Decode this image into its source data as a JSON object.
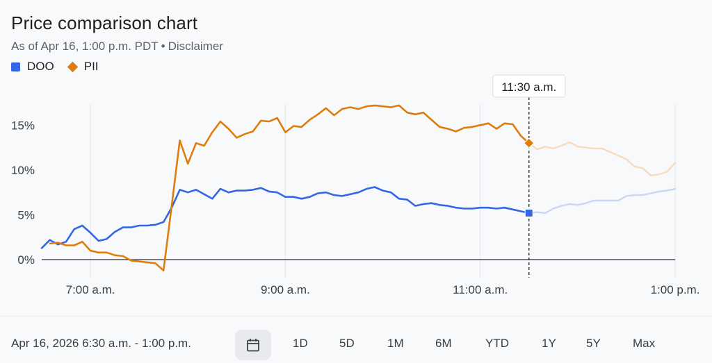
{
  "title": "Price comparison chart",
  "subtitle": {
    "as_of": "As of Apr 16, 1:00 p.m. PDT",
    "separator": "•",
    "disclaimer": "Disclaimer"
  },
  "legend": [
    {
      "label": "DOO",
      "color": "#3367e5",
      "marker": "square"
    },
    {
      "label": "PII",
      "color": "#e07c0b",
      "marker": "diamond"
    }
  ],
  "tooltip_label": "11:30 a.m.",
  "footer": {
    "date_range": "Apr 16, 2026 6:30 a.m. - 1:00 p.m.",
    "calendar_icon": "calendar-icon",
    "periods": [
      "1D",
      "5D",
      "1M",
      "6M",
      "YTD",
      "1Y",
      "5Y",
      "Max"
    ]
  },
  "chart_data": {
    "type": "line",
    "title": "Price comparison chart",
    "x_unit": "minutes since 6:30 a.m.",
    "xlim": [
      0,
      390
    ],
    "ylim": [
      -2,
      17.5
    ],
    "y_ticks": [
      {
        "value": 0,
        "label": "0%"
      },
      {
        "value": 5,
        "label": "5%"
      },
      {
        "value": 10,
        "label": "10%"
      },
      {
        "value": 15,
        "label": "15%"
      }
    ],
    "x_ticks": [
      {
        "value": 30,
        "label": "7:00 a.m."
      },
      {
        "value": 150,
        "label": "9:00 a.m."
      },
      {
        "value": 270,
        "label": "11:00 a.m."
      },
      {
        "value": 390,
        "label": "1:00 p.m."
      }
    ],
    "hover_x": 300,
    "series": [
      {
        "name": "DOO",
        "color": "#3367e5",
        "faded_color": "#c9d6f7",
        "points": [
          [
            0,
            1.3
          ],
          [
            5,
            2.2
          ],
          [
            10,
            1.7
          ],
          [
            15,
            2.0
          ],
          [
            20,
            3.4
          ],
          [
            25,
            3.8
          ],
          [
            30,
            3.0
          ],
          [
            35,
            2.1
          ],
          [
            40,
            2.3
          ],
          [
            45,
            3.1
          ],
          [
            50,
            3.6
          ],
          [
            55,
            3.6
          ],
          [
            60,
            3.8
          ],
          [
            65,
            3.8
          ],
          [
            70,
            3.9
          ],
          [
            75,
            4.2
          ],
          [
            80,
            5.8
          ],
          [
            85,
            7.8
          ],
          [
            90,
            7.5
          ],
          [
            95,
            7.8
          ],
          [
            100,
            7.3
          ],
          [
            105,
            6.8
          ],
          [
            110,
            7.9
          ],
          [
            115,
            7.5
          ],
          [
            120,
            7.7
          ],
          [
            125,
            7.7
          ],
          [
            130,
            7.8
          ],
          [
            135,
            8.0
          ],
          [
            140,
            7.6
          ],
          [
            145,
            7.5
          ],
          [
            150,
            7.0
          ],
          [
            155,
            7.0
          ],
          [
            160,
            6.8
          ],
          [
            165,
            7.0
          ],
          [
            170,
            7.4
          ],
          [
            175,
            7.5
          ],
          [
            180,
            7.2
          ],
          [
            185,
            7.1
          ],
          [
            190,
            7.3
          ],
          [
            195,
            7.5
          ],
          [
            200,
            7.9
          ],
          [
            205,
            8.1
          ],
          [
            210,
            7.7
          ],
          [
            215,
            7.5
          ],
          [
            220,
            6.8
          ],
          [
            225,
            6.7
          ],
          [
            230,
            6.0
          ],
          [
            235,
            6.2
          ],
          [
            240,
            6.3
          ],
          [
            245,
            6.1
          ],
          [
            250,
            6.0
          ],
          [
            255,
            5.8
          ],
          [
            260,
            5.7
          ],
          [
            265,
            5.7
          ],
          [
            270,
            5.8
          ],
          [
            275,
            5.8
          ],
          [
            280,
            5.7
          ],
          [
            285,
            5.8
          ],
          [
            290,
            5.6
          ],
          [
            295,
            5.4
          ],
          [
            300,
            5.2
          ],
          [
            305,
            5.3
          ],
          [
            310,
            5.2
          ],
          [
            315,
            5.7
          ],
          [
            320,
            6.0
          ],
          [
            325,
            6.2
          ],
          [
            330,
            6.1
          ],
          [
            335,
            6.3
          ],
          [
            340,
            6.6
          ],
          [
            345,
            6.6
          ],
          [
            350,
            6.6
          ],
          [
            355,
            6.6
          ],
          [
            360,
            7.1
          ],
          [
            365,
            7.2
          ],
          [
            370,
            7.2
          ],
          [
            375,
            7.4
          ],
          [
            380,
            7.6
          ],
          [
            385,
            7.7
          ],
          [
            390,
            7.9
          ]
        ]
      },
      {
        "name": "PII",
        "color": "#e07c0b",
        "faded_color": "#f6dcbe",
        "points": [
          [
            5,
            1.8
          ],
          [
            10,
            1.9
          ],
          [
            15,
            1.6
          ],
          [
            20,
            1.6
          ],
          [
            25,
            2.0
          ],
          [
            30,
            1.0
          ],
          [
            35,
            0.8
          ],
          [
            40,
            0.8
          ],
          [
            45,
            0.5
          ],
          [
            50,
            0.4
          ],
          [
            55,
            -0.1
          ],
          [
            60,
            -0.2
          ],
          [
            65,
            -0.3
          ],
          [
            70,
            -0.4
          ],
          [
            75,
            -1.2
          ],
          [
            80,
            6.0
          ],
          [
            85,
            13.3
          ],
          [
            90,
            10.7
          ],
          [
            95,
            13.0
          ],
          [
            100,
            12.7
          ],
          [
            105,
            14.2
          ],
          [
            110,
            15.4
          ],
          [
            115,
            14.6
          ],
          [
            120,
            13.6
          ],
          [
            125,
            14.0
          ],
          [
            130,
            14.3
          ],
          [
            135,
            15.5
          ],
          [
            140,
            15.4
          ],
          [
            145,
            15.8
          ],
          [
            150,
            14.2
          ],
          [
            155,
            14.9
          ],
          [
            160,
            14.8
          ],
          [
            165,
            15.6
          ],
          [
            170,
            16.2
          ],
          [
            175,
            16.9
          ],
          [
            180,
            16.1
          ],
          [
            185,
            16.8
          ],
          [
            190,
            17.0
          ],
          [
            195,
            16.8
          ],
          [
            200,
            17.1
          ],
          [
            205,
            17.2
          ],
          [
            210,
            17.1
          ],
          [
            215,
            17.0
          ],
          [
            220,
            17.2
          ],
          [
            225,
            16.4
          ],
          [
            230,
            16.2
          ],
          [
            235,
            16.4
          ],
          [
            240,
            15.6
          ],
          [
            245,
            14.8
          ],
          [
            250,
            14.6
          ],
          [
            255,
            14.3
          ],
          [
            260,
            14.7
          ],
          [
            265,
            14.8
          ],
          [
            270,
            15.0
          ],
          [
            275,
            15.2
          ],
          [
            280,
            14.6
          ],
          [
            285,
            15.2
          ],
          [
            290,
            15.1
          ],
          [
            295,
            13.8
          ],
          [
            300,
            13.0
          ],
          [
            305,
            12.3
          ],
          [
            310,
            12.6
          ],
          [
            315,
            12.4
          ],
          [
            320,
            12.7
          ],
          [
            325,
            13.1
          ],
          [
            330,
            12.6
          ],
          [
            335,
            12.5
          ],
          [
            340,
            12.4
          ],
          [
            345,
            12.4
          ],
          [
            350,
            12.0
          ],
          [
            355,
            11.6
          ],
          [
            360,
            11.2
          ],
          [
            365,
            10.4
          ],
          [
            370,
            10.2
          ],
          [
            375,
            9.4
          ],
          [
            380,
            9.5
          ],
          [
            385,
            9.8
          ],
          [
            390,
            10.8
          ]
        ]
      }
    ]
  }
}
